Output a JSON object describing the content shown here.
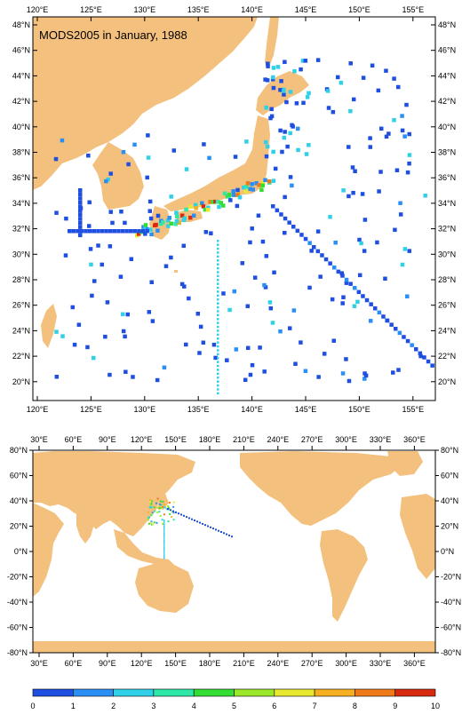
{
  "map_title": "MODS2005 in January, 1988",
  "colors": {
    "land": "#f4c07e",
    "ocean": "#ffffff",
    "palette": [
      "#1f4fe0",
      "#2a8ff5",
      "#2fd0e8",
      "#2fe8a8",
      "#33dd33",
      "#9be82a",
      "#e8e82f",
      "#f5b021",
      "#f07a1a",
      "#d82a10"
    ]
  },
  "top_map": {
    "lon_labels": [
      "120°E",
      "125°E",
      "130°E",
      "135°E",
      "140°E",
      "145°E",
      "150°E",
      "155°E"
    ],
    "lat_labels": [
      "48°N",
      "46°N",
      "44°N",
      "42°N",
      "40°N",
      "38°N",
      "36°N",
      "34°N",
      "32°N",
      "30°N",
      "28°N",
      "26°N",
      "24°N",
      "22°N",
      "20°N"
    ]
  },
  "bottom_map": {
    "lon_labels": [
      "30°E",
      "60°E",
      "90°E",
      "120°E",
      "150°E",
      "180°E",
      "210°E",
      "240°E",
      "270°E",
      "300°E",
      "330°E",
      "360°E"
    ],
    "lat_labels": [
      "80°N",
      "60°N",
      "40°N",
      "20°N",
      "0°N",
      "-20°N",
      "-40°N",
      "-60°N",
      "-80°N"
    ]
  },
  "colorbar": {
    "labels": [
      "0",
      "1",
      "2",
      "3",
      "4",
      "5",
      "6",
      "7",
      "8",
      "9",
      "10"
    ]
  }
}
